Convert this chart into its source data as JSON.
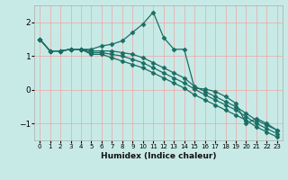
{
  "xlabel": "Humidex (Indice chaleur)",
  "background_color": "#c8eae6",
  "grid_color": "#e8b0b0",
  "line_color": "#1a6e65",
  "xlim": [
    -0.5,
    23.5
  ],
  "ylim": [
    -1.5,
    2.5
  ],
  "yticks": [
    -1,
    0,
    1,
    2
  ],
  "xticks": [
    0,
    1,
    2,
    3,
    4,
    5,
    6,
    7,
    8,
    9,
    10,
    11,
    12,
    13,
    14,
    15,
    16,
    17,
    18,
    19,
    20,
    21,
    22,
    23
  ],
  "line1_x": [
    0,
    1,
    2,
    3,
    4,
    5,
    6,
    7,
    8,
    9,
    10,
    11,
    12,
    13,
    14,
    15,
    16,
    17,
    18,
    19,
    20,
    21,
    22,
    23
  ],
  "line1_y": [
    1.5,
    1.15,
    1.15,
    1.2,
    1.2,
    1.2,
    1.3,
    1.35,
    1.45,
    1.7,
    1.95,
    2.3,
    1.55,
    1.2,
    1.2,
    0.05,
    0.02,
    -0.05,
    -0.2,
    -0.4,
    -1.0,
    -0.85,
    -1.0,
    -1.2
  ],
  "line2_x": [
    0,
    1,
    2,
    3,
    4,
    5,
    6,
    7,
    8,
    9,
    10,
    11,
    12,
    13,
    14,
    15,
    16,
    17,
    18,
    19,
    20,
    21,
    22,
    23
  ],
  "line2_y": [
    1.5,
    1.15,
    1.15,
    1.2,
    1.2,
    1.15,
    1.15,
    1.15,
    1.1,
    1.05,
    0.95,
    0.8,
    0.65,
    0.5,
    0.35,
    0.1,
    -0.05,
    -0.2,
    -0.35,
    -0.5,
    -0.7,
    -0.9,
    -1.05,
    -1.2
  ],
  "line3_x": [
    0,
    1,
    2,
    3,
    4,
    5,
    6,
    7,
    8,
    9,
    10,
    11,
    12,
    13,
    14,
    15,
    16,
    17,
    18,
    19,
    20,
    21,
    22,
    23
  ],
  "line3_y": [
    1.5,
    1.15,
    1.15,
    1.2,
    1.2,
    1.1,
    1.1,
    1.05,
    1.0,
    0.9,
    0.8,
    0.65,
    0.5,
    0.35,
    0.2,
    0.02,
    -0.15,
    -0.3,
    -0.45,
    -0.6,
    -0.8,
    -1.0,
    -1.15,
    -1.3
  ],
  "line4_x": [
    0,
    1,
    2,
    3,
    4,
    5,
    6,
    7,
    8,
    9,
    10,
    11,
    12,
    13,
    14,
    15,
    16,
    17,
    18,
    19,
    20,
    21,
    22,
    23
  ],
  "line4_y": [
    1.5,
    1.15,
    1.15,
    1.2,
    1.2,
    1.05,
    1.05,
    0.95,
    0.85,
    0.75,
    0.65,
    0.5,
    0.35,
    0.2,
    0.05,
    -0.15,
    -0.3,
    -0.45,
    -0.6,
    -0.75,
    -0.9,
    -1.1,
    -1.25,
    -1.4
  ]
}
